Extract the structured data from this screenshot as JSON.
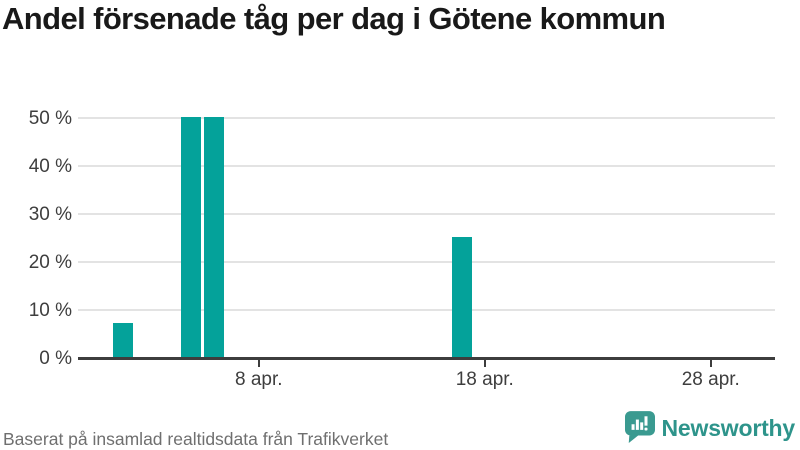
{
  "title": "Andel försenade tåg per dag i Götene kommun",
  "footer": {
    "source_note": "Baserat på insamlad realtidsdata från Trafikverket",
    "logo_text": "Newsworthy"
  },
  "colors": {
    "bar": "#04a29a",
    "logo_teal": "#2e948b",
    "title_text": "#191919",
    "axis_text": "#3e3e3e",
    "grid_line": "#e3e3e3",
    "axis_line": "#3d3d3d",
    "footer_text": "#6f6f6f"
  },
  "chart_data": {
    "type": "bar",
    "title": "Andel försenade tåg per dag i Götene kommun",
    "categories": [
      "2 apr.",
      "5 apr.",
      "6 apr.",
      "17 apr."
    ],
    "values": [
      7,
      50,
      50,
      25
    ],
    "unit": "%",
    "xlabel": "",
    "ylabel": "",
    "ylim": [
      0,
      50
    ],
    "yticks": [
      0,
      10,
      20,
      30,
      40,
      50
    ],
    "ytick_labels": [
      "0 %",
      "10 %",
      "20 %",
      "30 %",
      "40 %",
      "50 %"
    ],
    "xtick_labels": [
      "8 apr.",
      "18 apr.",
      "28 apr."
    ],
    "x_axis": {
      "scale": "date-days-april",
      "axis_start_day_offset": 0,
      "axis_end_day_offset": 31,
      "bar_day_offsets": [
        2,
        5,
        6,
        17
      ],
      "tick_day_offsets": [
        8,
        18,
        28
      ]
    },
    "grid": true,
    "legend": "none",
    "bar_color": "#04a29a"
  }
}
